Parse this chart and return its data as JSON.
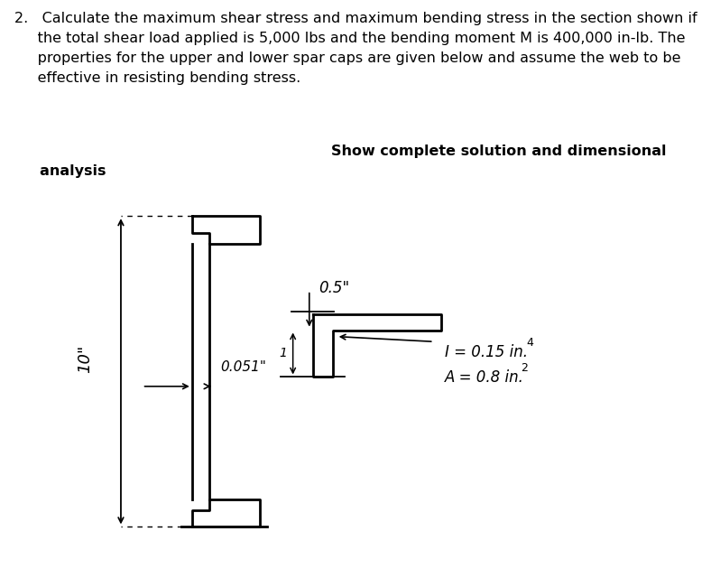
{
  "background_color": "#ffffff",
  "text_color": "#000000",
  "body_text_line1": "2.   Calculate the maximum shear stress and maximum bending stress in the section shown if",
  "body_text_line2": "     the total shear load applied is 5,000 lbs and the bending moment M is 400,000 in-lb. The",
  "body_text_line3": "     properties for the upper and lower spar caps are given below and assume the web to be",
  "body_text_line4_normal": "     effective in resisting bending stress. ",
  "body_text_line4_bold": "Show complete solution and dimensional",
  "body_text_line5_bold": "     analysis",
  "font_size_body": 11.5,
  "dim_10": "10\"",
  "dim_0051": "0.051\"",
  "dim_05": "0.5\"",
  "ann_I": "I = 0.15 in.",
  "ann_I_exp": "4",
  "ann_A": "A = 0.8 in.",
  "ann_A_exp": "2",
  "ann_1": "1",
  "fig_width": 7.88,
  "fig_height": 6.4
}
